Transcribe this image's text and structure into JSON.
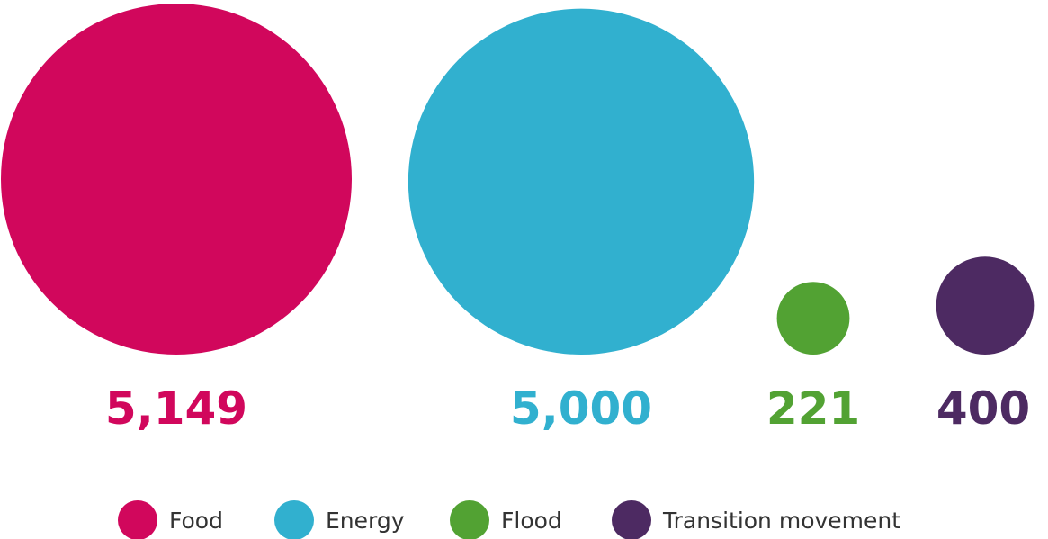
{
  "chart_data": {
    "type": "bubble",
    "categories": [
      "Food",
      "Energy",
      "Flood",
      "Transition movement"
    ],
    "values": [
      5149,
      5000,
      221,
      400
    ],
    "value_labels": [
      "5,149",
      "5,000",
      "221",
      "400"
    ],
    "colors": [
      "#d1075c",
      "#31b0cf",
      "#52a233",
      "#4d2a62"
    ],
    "legend": {
      "placement": "bottom",
      "items": [
        {
          "label": "Food",
          "color": "#d1075c"
        },
        {
          "label": "Energy",
          "color": "#31b0cf"
        },
        {
          "label": "Flood",
          "color": "#52a233"
        },
        {
          "label": "Transition movement",
          "color": "#4d2a62"
        }
      ]
    }
  }
}
